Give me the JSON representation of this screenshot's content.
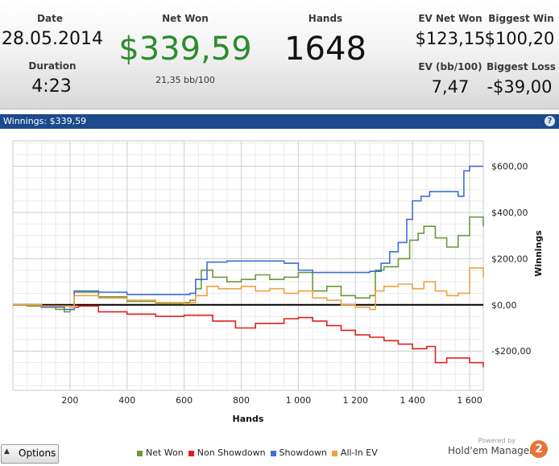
{
  "summary": {
    "date_label": "Date",
    "date_value": "28.05.2014",
    "duration_label": "Duration",
    "duration_value": "4:23",
    "net_won_label": "Net Won",
    "net_won_value": "$339,59",
    "net_won_sub": "21,35 bb/100",
    "hands_label": "Hands",
    "hands_value": "1648",
    "ev_net_won_label": "EV Net Won",
    "ev_net_won_value": "$123,15",
    "biggest_win_label": "Biggest Win",
    "biggest_win_value": "$100,20",
    "ev_bb_label": "EV (bb/100)",
    "ev_bb_value": "7,47",
    "biggest_loss_label": "Biggest Loss",
    "biggest_loss_value": "-$39,00"
  },
  "panel": {
    "title": "Winnings: $339,59",
    "help_icon": "question-icon"
  },
  "colors": {
    "net_won": "#6a9a3a",
    "non_showdown": "#e0201c",
    "showdown": "#3d6fd6",
    "all_in_ev": "#f0a040",
    "title_bar": "#1b4b8c"
  },
  "chart_data": {
    "type": "line",
    "xlabel": "Hands",
    "ylabel": "Winnings",
    "xlim": [
      0,
      1648
    ],
    "ylim": [
      -370,
      710
    ],
    "x_ticks": [
      200,
      400,
      600,
      800,
      1000,
      1200,
      1400,
      1600
    ],
    "x_tick_labels": [
      "200",
      "400",
      "600",
      "800",
      "1 000",
      "1 200",
      "1 400",
      "1 600"
    ],
    "y_ticks": [
      600,
      400,
      200,
      0,
      -200
    ],
    "y_tick_labels": [
      "$600,00",
      "$400,00",
      "$200,00",
      "$0,00",
      "-$200,00"
    ],
    "grid": true,
    "legend_position": "bottom",
    "series": [
      {
        "name": "Net Won",
        "color": "#6a9a3a",
        "points": [
          [
            0,
            0
          ],
          [
            50,
            -5
          ],
          [
            100,
            -10
          ],
          [
            150,
            -20
          ],
          [
            180,
            -30
          ],
          [
            200,
            -20
          ],
          [
            215,
            55
          ],
          [
            300,
            35
          ],
          [
            400,
            15
          ],
          [
            500,
            5
          ],
          [
            600,
            10
          ],
          [
            620,
            20
          ],
          [
            640,
            70
          ],
          [
            660,
            150
          ],
          [
            700,
            120
          ],
          [
            750,
            100
          ],
          [
            800,
            110
          ],
          [
            850,
            130
          ],
          [
            900,
            110
          ],
          [
            950,
            120
          ],
          [
            1000,
            140
          ],
          [
            1050,
            60
          ],
          [
            1100,
            80
          ],
          [
            1150,
            40
          ],
          [
            1200,
            30
          ],
          [
            1250,
            40
          ],
          [
            1270,
            150
          ],
          [
            1300,
            165
          ],
          [
            1350,
            200
          ],
          [
            1390,
            280
          ],
          [
            1420,
            310
          ],
          [
            1440,
            340
          ],
          [
            1480,
            290
          ],
          [
            1520,
            250
          ],
          [
            1560,
            300
          ],
          [
            1600,
            380
          ],
          [
            1648,
            340
          ]
        ]
      },
      {
        "name": "Non Showdown",
        "color": "#e0201c",
        "points": [
          [
            0,
            0
          ],
          [
            100,
            -5
          ],
          [
            200,
            -10
          ],
          [
            230,
            -5
          ],
          [
            300,
            -30
          ],
          [
            400,
            -40
          ],
          [
            500,
            -50
          ],
          [
            600,
            -45
          ],
          [
            700,
            -70
          ],
          [
            780,
            -100
          ],
          [
            850,
            -80
          ],
          [
            950,
            -60
          ],
          [
            1000,
            -55
          ],
          [
            1050,
            -70
          ],
          [
            1100,
            -90
          ],
          [
            1150,
            -110
          ],
          [
            1200,
            -130
          ],
          [
            1250,
            -140
          ],
          [
            1300,
            -155
          ],
          [
            1350,
            -170
          ],
          [
            1400,
            -190
          ],
          [
            1450,
            -180
          ],
          [
            1480,
            -250
          ],
          [
            1520,
            -230
          ],
          [
            1560,
            -230
          ],
          [
            1600,
            -250
          ],
          [
            1648,
            -270
          ]
        ]
      },
      {
        "name": "Showdown",
        "color": "#3d6fd6",
        "points": [
          [
            0,
            0
          ],
          [
            100,
            -10
          ],
          [
            180,
            -20
          ],
          [
            215,
            60
          ],
          [
            250,
            60
          ],
          [
            300,
            55
          ],
          [
            400,
            45
          ],
          [
            500,
            45
          ],
          [
            600,
            45
          ],
          [
            620,
            50
          ],
          [
            640,
            110
          ],
          [
            680,
            185
          ],
          [
            750,
            190
          ],
          [
            850,
            190
          ],
          [
            950,
            180
          ],
          [
            1000,
            150
          ],
          [
            1050,
            140
          ],
          [
            1100,
            140
          ],
          [
            1150,
            140
          ],
          [
            1200,
            140
          ],
          [
            1250,
            145
          ],
          [
            1290,
            180
          ],
          [
            1320,
            230
          ],
          [
            1350,
            270
          ],
          [
            1380,
            370
          ],
          [
            1400,
            450
          ],
          [
            1430,
            470
          ],
          [
            1460,
            490
          ],
          [
            1500,
            490
          ],
          [
            1520,
            490
          ],
          [
            1560,
            470
          ],
          [
            1580,
            580
          ],
          [
            1600,
            600
          ],
          [
            1648,
            600
          ]
        ]
      },
      {
        "name": "All-In EV",
        "color": "#f0a040",
        "points": [
          [
            0,
            0
          ],
          [
            100,
            -5
          ],
          [
            200,
            -10
          ],
          [
            215,
            40
          ],
          [
            300,
            30
          ],
          [
            400,
            20
          ],
          [
            500,
            10
          ],
          [
            600,
            5
          ],
          [
            620,
            10
          ],
          [
            640,
            40
          ],
          [
            680,
            80
          ],
          [
            720,
            70
          ],
          [
            800,
            80
          ],
          [
            850,
            60
          ],
          [
            900,
            70
          ],
          [
            950,
            50
          ],
          [
            1000,
            60
          ],
          [
            1050,
            30
          ],
          [
            1100,
            20
          ],
          [
            1150,
            0
          ],
          [
            1200,
            -10
          ],
          [
            1250,
            -20
          ],
          [
            1270,
            60
          ],
          [
            1300,
            80
          ],
          [
            1350,
            90
          ],
          [
            1400,
            70
          ],
          [
            1440,
            100
          ],
          [
            1480,
            60
          ],
          [
            1520,
            40
          ],
          [
            1560,
            50
          ],
          [
            1600,
            160
          ],
          [
            1648,
            120
          ]
        ]
      }
    ]
  },
  "footer": {
    "options_label": "Options",
    "powered_by": "Powered by",
    "brand_name": "Hold'em Manager",
    "brand_mark": "2"
  }
}
